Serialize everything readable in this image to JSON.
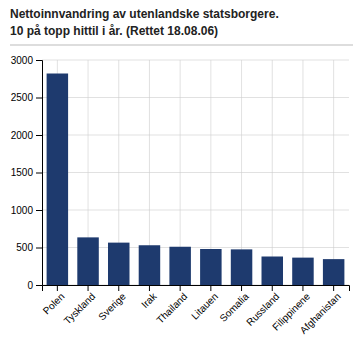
{
  "chart_data": {
    "type": "bar",
    "title": "Nettoinnvandring av utenlandske statsborgere.",
    "subtitle": "10 på topp hittil i år. (Rettet 18.08.06)",
    "categories": [
      "Polen",
      "Tyskland",
      "Sverige",
      "Irak",
      "Thailand",
      "Litauen",
      "Somalia",
      "Russland",
      "Filippinene",
      "Afghanistan"
    ],
    "values": [
      2820,
      635,
      565,
      530,
      510,
      480,
      475,
      380,
      365,
      345
    ],
    "color": "#1e3a6e",
    "ylim": [
      0,
      3000
    ],
    "yticks": [
      0,
      500,
      1000,
      1500,
      2000,
      2500,
      3000
    ],
    "grid": true
  }
}
